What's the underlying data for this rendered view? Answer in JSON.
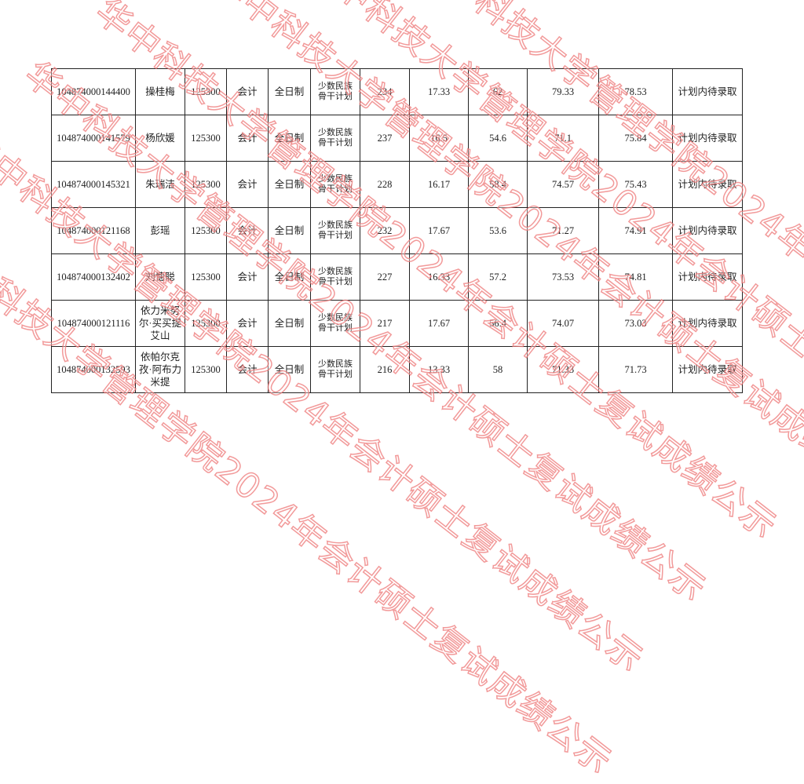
{
  "watermark": "华中科技大学管理学院2024年会计硕士复试成绩公示",
  "watermark_color": "#ee7878",
  "rows": [
    [
      "104874000144400",
      "操桂梅",
      "125300",
      "会计",
      "全日制",
      "少数民族骨干计划",
      "234",
      "17.33",
      "62",
      "79.33",
      "78.53",
      "计划内待录取"
    ],
    [
      "104874000141579",
      "杨欣媛",
      "125300",
      "会计",
      "全日制",
      "少数民族骨干计划",
      "237",
      "16.5",
      "54.6",
      "71.1",
      "75.84",
      "计划内待录取"
    ],
    [
      "104874000145321",
      "朱瑞洁",
      "125300",
      "会计",
      "全日制",
      "少数民族骨干计划",
      "228",
      "16.17",
      "58.4",
      "74.57",
      "75.43",
      "计划内待录取"
    ],
    [
      "104874000121168",
      "彭瑶",
      "125300",
      "会计",
      "全日制",
      "少数民族骨干计划",
      "232",
      "17.67",
      "53.6",
      "71.27",
      "74.91",
      "计划内待录取"
    ],
    [
      "104874000132402",
      "刘憓聪",
      "125300",
      "会计",
      "全日制",
      "少数民族骨干计划",
      "227",
      "16.33",
      "57.2",
      "73.53",
      "74.81",
      "计划内待录取"
    ],
    [
      "104874000121116",
      "依力米努尔·买买提艾山",
      "125300",
      "会计",
      "全日制",
      "少数民族骨干计划",
      "217",
      "17.67",
      "56.4",
      "74.07",
      "73.03",
      "计划内待录取"
    ],
    [
      "104874000132593",
      "依帕尔克孜·阿布力米提",
      "125300",
      "会计",
      "全日制",
      "少数民族骨干计划",
      "216",
      "13.33",
      "58",
      "71.33",
      "71.73",
      "计划内待录取"
    ]
  ]
}
